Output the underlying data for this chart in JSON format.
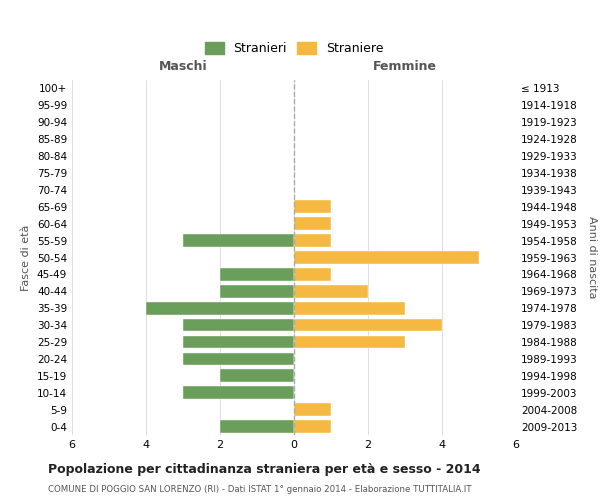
{
  "age_groups": [
    "0-4",
    "5-9",
    "10-14",
    "15-19",
    "20-24",
    "25-29",
    "30-34",
    "35-39",
    "40-44",
    "45-49",
    "50-54",
    "55-59",
    "60-64",
    "65-69",
    "70-74",
    "75-79",
    "80-84",
    "85-89",
    "90-94",
    "95-99",
    "100+"
  ],
  "birth_years": [
    "2009-2013",
    "2004-2008",
    "1999-2003",
    "1994-1998",
    "1989-1993",
    "1984-1988",
    "1979-1983",
    "1974-1978",
    "1969-1973",
    "1964-1968",
    "1959-1963",
    "1954-1958",
    "1949-1953",
    "1944-1948",
    "1939-1943",
    "1934-1938",
    "1929-1933",
    "1924-1928",
    "1919-1923",
    "1914-1918",
    "≤ 1913"
  ],
  "maschi": [
    2,
    0,
    3,
    2,
    3,
    3,
    3,
    4,
    2,
    2,
    0,
    3,
    0,
    0,
    0,
    0,
    0,
    0,
    0,
    0,
    0
  ],
  "femmine": [
    1,
    1,
    0,
    0,
    0,
    3,
    4,
    3,
    2,
    1,
    5,
    1,
    1,
    1,
    0,
    0,
    0,
    0,
    0,
    0,
    0
  ],
  "maschi_color": "#6a9e5a",
  "femmine_color": "#f5b942",
  "title": "Popolazione per cittadinanza straniera per età e sesso - 2014",
  "subtitle": "COMUNE DI POGGIO SAN LORENZO (RI) - Dati ISTAT 1° gennaio 2014 - Elaborazione TUTTITALIA.IT",
  "left_label": "Maschi",
  "right_label": "Femmine",
  "y_left_label": "Fasce di età",
  "y_right_label": "Anni di nascita",
  "legend_maschi": "Stranieri",
  "legend_femmine": "Straniere",
  "xlim": 6,
  "background_color": "#ffffff",
  "grid_color": "#d0d0d0"
}
